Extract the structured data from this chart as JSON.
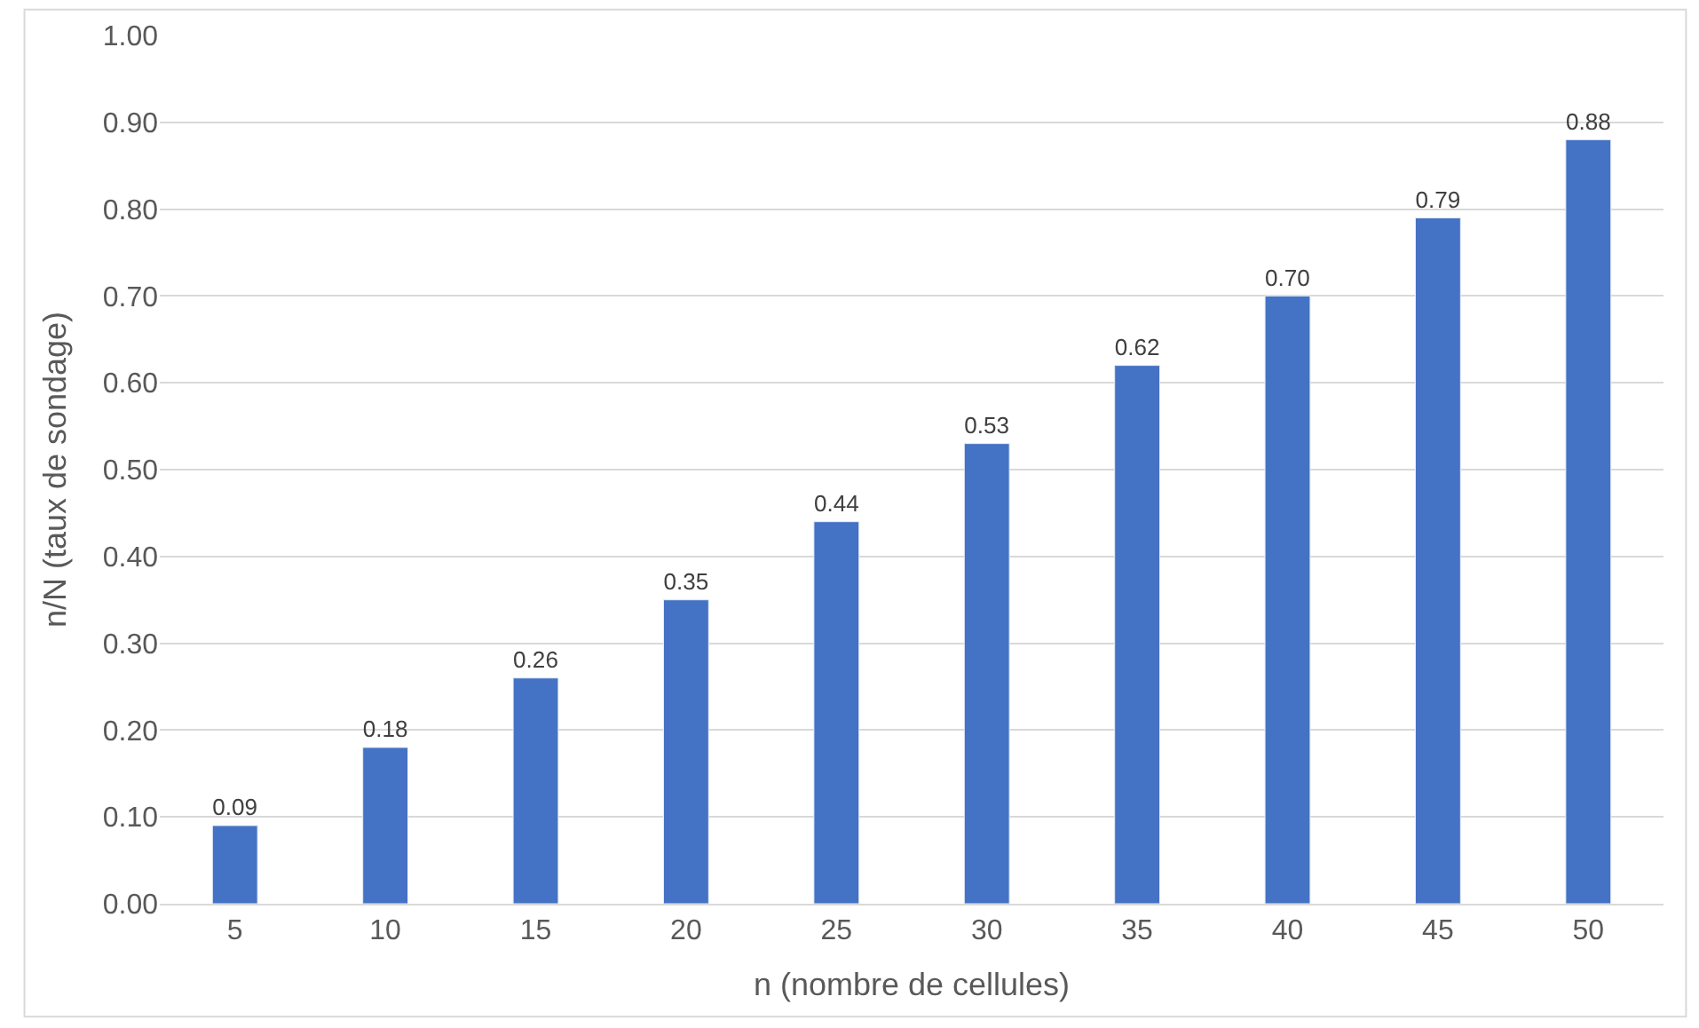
{
  "chart_data": {
    "type": "bar",
    "xlabel": "n (nombre de cellules)",
    "ylabel": "n/N (taux de sondage)",
    "categories": [
      "5",
      "10",
      "15",
      "20",
      "25",
      "30",
      "35",
      "40",
      "45",
      "50"
    ],
    "values": [
      0.09,
      0.18,
      0.26,
      0.35,
      0.44,
      0.53,
      0.62,
      0.7,
      0.79,
      0.88
    ],
    "color": "#4472c4",
    "ylim": [
      0,
      1
    ],
    "yticks": [
      {
        "value": 0,
        "label": "0.00"
      },
      {
        "value": 0.1,
        "label": "0.10"
      },
      {
        "value": 0.2,
        "label": "0.20"
      },
      {
        "value": 0.3,
        "label": "0.30"
      },
      {
        "value": 0.4,
        "label": "0.40"
      },
      {
        "value": 0.5,
        "label": "0.50"
      },
      {
        "value": 0.6,
        "label": "0.60"
      },
      {
        "value": 0.7,
        "label": "0.70"
      },
      {
        "value": 0.8,
        "label": "0.80"
      },
      {
        "value": 0.9,
        "label": "0.90"
      },
      {
        "value": 1,
        "label": "1.00"
      }
    ],
    "value_labels": [
      "0.09",
      "0.18",
      "0.26",
      "0.35",
      "0.44",
      "0.53",
      "0.62",
      "0.70",
      "0.79",
      "0.88"
    ],
    "grid": "y"
  }
}
